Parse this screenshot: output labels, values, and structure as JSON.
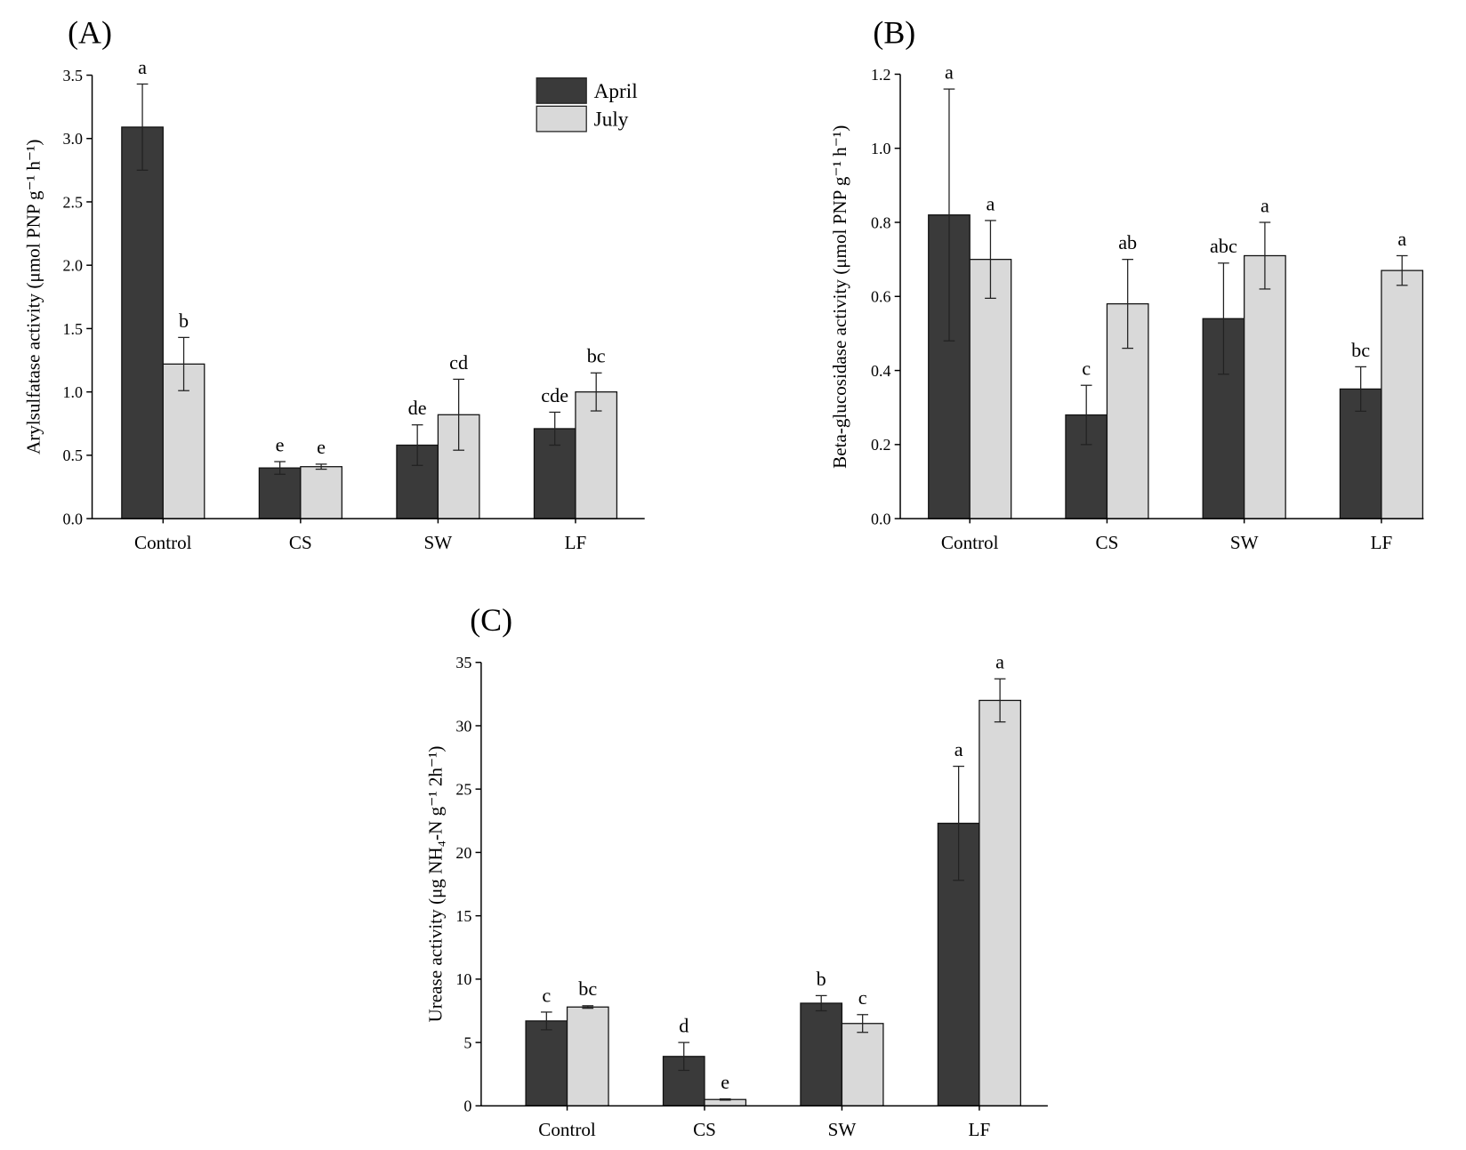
{
  "chart_data": [
    {
      "type": "bar",
      "panel_label": "(A)",
      "ylabel": "Arylsulfatase activity (μmol PNP g⁻¹ h⁻¹)",
      "ylim": [
        0,
        3.5
      ],
      "yticks": [
        "0.0",
        "0.5",
        "1.0",
        "1.5",
        "2.0",
        "2.5",
        "3.0",
        "3.5"
      ],
      "grid": false,
      "legend_position": "top-right",
      "categories": [
        "Control",
        "CS",
        "SW",
        "LF"
      ],
      "series": [
        {
          "name": "April",
          "color": "#3a3a3a",
          "values": [
            3.09,
            0.4,
            0.58,
            0.71
          ],
          "err": [
            0.34,
            0.05,
            0.16,
            0.13
          ],
          "letters": [
            "a",
            "e",
            "de",
            "cde"
          ]
        },
        {
          "name": "July",
          "color": "#d9d9d9",
          "values": [
            1.22,
            0.41,
            0.82,
            1.0
          ],
          "err": [
            0.21,
            0.02,
            0.28,
            0.15
          ],
          "letters": [
            "b",
            "e",
            "cd",
            "bc"
          ]
        }
      ]
    },
    {
      "type": "bar",
      "panel_label": "(B)",
      "ylabel": "Beta-glucosidase activity (μmol PNP g⁻¹ h⁻¹)",
      "ylim": [
        0,
        1.2
      ],
      "yticks": [
        "0.0",
        "0.2",
        "0.4",
        "0.6",
        "0.8",
        "1.0",
        "1.2"
      ],
      "grid": false,
      "categories": [
        "Control",
        "CS",
        "SW",
        "LF"
      ],
      "series": [
        {
          "color": "#3a3a3a",
          "values": [
            0.82,
            0.28,
            0.54,
            0.35
          ],
          "err": [
            0.34,
            0.08,
            0.15,
            0.06
          ],
          "letters": [
            "a",
            "c",
            "abc",
            "bc"
          ]
        },
        {
          "color": "#d9d9d9",
          "values": [
            0.7,
            0.58,
            0.71,
            0.67
          ],
          "err": [
            0.105,
            0.12,
            0.09,
            0.04
          ],
          "letters": [
            "a",
            "ab",
            "a",
            "a"
          ]
        }
      ]
    },
    {
      "type": "bar",
      "panel_label": "(C)",
      "ylabel": "Urease activity (μg NH₄-N g⁻¹ 2h⁻¹)",
      "ylim": [
        0,
        35
      ],
      "yticks": [
        "0",
        "5",
        "10",
        "15",
        "20",
        "25",
        "30",
        "35"
      ],
      "grid": false,
      "categories": [
        "Control",
        "CS",
        "SW",
        "LF"
      ],
      "series": [
        {
          "color": "#3a3a3a",
          "values": [
            6.7,
            3.9,
            8.1,
            22.3
          ],
          "err": [
            0.7,
            1.1,
            0.6,
            4.5
          ],
          "letters": [
            "c",
            "d",
            "b",
            "a"
          ]
        },
        {
          "color": "#d9d9d9",
          "values": [
            7.8,
            0.5,
            6.5,
            32.0
          ],
          "err": [
            0.1,
            0.05,
            0.7,
            1.7
          ],
          "letters": [
            "bc",
            "e",
            "c",
            "a"
          ]
        }
      ]
    }
  ]
}
